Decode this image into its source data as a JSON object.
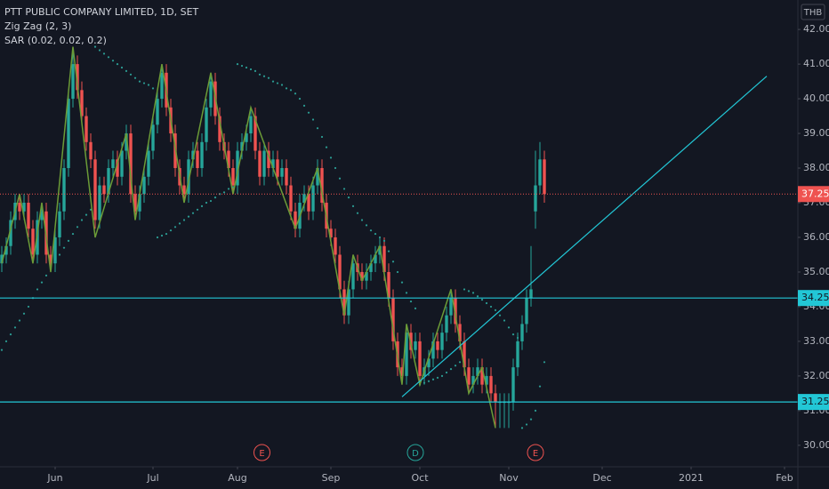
{
  "chart_data": {
    "type": "candlestick",
    "title": "PTT PUBLIC COMPANY LIMITED, 1D, SET",
    "currency": "THB",
    "up_color": "#26a69a",
    "down_color": "#ef5350",
    "open": [
      35.25,
      35.5,
      35.75,
      36.5,
      37,
      36.75,
      37,
      36.25,
      35.5,
      36.5,
      36.75,
      35.5,
      35.25,
      36,
      36.75,
      38,
      40,
      41,
      40.25,
      39.5,
      38.75,
      38.25,
      36.5,
      37.5,
      37.25,
      38,
      38.25,
      37.75,
      38.5,
      39,
      37.25,
      36.75,
      37.25,
      37.75,
      38.5,
      39.25,
      40,
      40.75,
      39.75,
      39,
      38,
      37.5,
      37.25,
      38.25,
      38.5,
      38,
      38.75,
      39.75,
      40.5,
      39.5,
      38.75,
      38.5,
      38,
      37.5,
      38.5,
      38.75,
      39,
      39.5,
      38.5,
      37.75,
      38.5,
      38,
      38.25,
      37.75,
      38,
      37.5,
      36.75,
      36.25,
      37,
      37.25,
      36.75,
      37.5,
      38,
      37,
      36.25,
      36,
      35.5,
      34.5,
      33.75,
      34.5,
      35.25,
      35,
      34.75,
      35,
      35.25,
      35.5,
      35.75,
      35,
      34.25,
      33,
      32.25,
      32,
      33.25,
      32.75,
      33,
      32,
      32.25,
      32.5,
      33,
      32.75,
      33.25,
      33.75,
      34.25,
      33.5,
      33,
      32.25,
      31.75,
      32,
      32.25,
      31.75,
      32,
      31.5,
      31.25,
      31.25,
      31.25,
      31.25,
      32.25,
      33,
      33.5,
      34.25,
      36.75,
      37.5,
      38.25
    ],
    "high": [
      35.75,
      36,
      36.75,
      37.25,
      37.25,
      37.25,
      37.25,
      36.5,
      36.75,
      37,
      37,
      35.75,
      36.25,
      37,
      38.25,
      40.25,
      41.5,
      41.25,
      40.5,
      39.75,
      39,
      38.5,
      37.75,
      37.75,
      38.25,
      38.5,
      38.5,
      38.75,
      39.25,
      39.25,
      37.5,
      37.5,
      38,
      38.75,
      39.5,
      40.25,
      41,
      41,
      40,
      39.25,
      38.25,
      37.75,
      38.5,
      38.75,
      38.75,
      39,
      40,
      40.75,
      40.75,
      39.75,
      39,
      38.75,
      38.25,
      38.75,
      39,
      39.25,
      39.75,
      39.75,
      38.75,
      38.75,
      38.75,
      38.5,
      38.5,
      38.25,
      38.25,
      37.75,
      37,
      37.25,
      37.5,
      37.5,
      37.75,
      38.25,
      38.25,
      37.25,
      36.5,
      36.25,
      35.75,
      34.75,
      34.75,
      35.5,
      35.5,
      35.25,
      35.25,
      35.5,
      35.75,
      36,
      36,
      35.25,
      34.5,
      33.25,
      32.5,
      33.5,
      33.5,
      33.25,
      33.25,
      32.5,
      32.75,
      33.25,
      33.25,
      33.5,
      34,
      34.5,
      34.5,
      33.75,
      33.25,
      32.5,
      32.25,
      32.5,
      32.5,
      32.25,
      32.25,
      31.75,
      31.5,
      31.5,
      31.5,
      32.5,
      33.25,
      33.75,
      34.5,
      35.75,
      38.5,
      38.75,
      38.5
    ],
    "low": [
      35,
      35.25,
      35.5,
      36.25,
      36.5,
      36.5,
      36,
      35.25,
      35.25,
      36.25,
      35.25,
      35,
      35,
      35.75,
      36.5,
      37.75,
      39.75,
      40,
      39.25,
      38.5,
      38,
      36.25,
      36.25,
      37,
      37,
      37.75,
      37.5,
      37.5,
      38.25,
      37,
      36.5,
      36.5,
      37,
      37.5,
      38.25,
      39,
      39.75,
      39.5,
      38.75,
      37.75,
      37.25,
      37,
      37,
      38,
      37.75,
      37.75,
      38.5,
      39.5,
      39.25,
      38.5,
      38.25,
      37.75,
      37.25,
      37.25,
      38.25,
      38.5,
      38.75,
      38.25,
      37.5,
      37.5,
      37.75,
      37.75,
      37.5,
      37.5,
      37.25,
      36.5,
      36,
      36,
      36.75,
      36.5,
      36.5,
      37.25,
      36.75,
      36,
      35.75,
      35.25,
      34.25,
      33.5,
      33.5,
      34.25,
      34.75,
      34.5,
      34.5,
      34.75,
      35,
      35.25,
      34.75,
      34,
      32.75,
      32,
      31.75,
      31.75,
      32.5,
      32.5,
      31.75,
      31.75,
      32,
      32.25,
      32.5,
      32.5,
      33,
      33.5,
      33.25,
      32.75,
      32,
      31.5,
      31.5,
      31.75,
      31.5,
      31.5,
      31.25,
      30.5,
      30.5,
      30.5,
      30.5,
      31,
      32,
      32.75,
      33.25,
      34,
      36.25,
      37.25,
      37
    ],
    "close": [
      35.5,
      35.75,
      36.5,
      37,
      36.75,
      37,
      36.25,
      35.5,
      36.5,
      36.75,
      35.5,
      35.25,
      36,
      36.75,
      38,
      40,
      41,
      40.25,
      39.5,
      38.75,
      38.25,
      36.5,
      37.5,
      37.25,
      38,
      38.25,
      37.75,
      38.5,
      39,
      37.25,
      36.75,
      37.25,
      37.75,
      38.5,
      39.25,
      40,
      40.75,
      39.75,
      39,
      38,
      37.5,
      37.25,
      38.25,
      38.5,
      38,
      38.75,
      39.75,
      40.5,
      39.5,
      38.75,
      38.5,
      38,
      37.5,
      38.5,
      38.75,
      39,
      39.5,
      38.5,
      37.75,
      38.5,
      38,
      38.25,
      37.75,
      38,
      37.5,
      36.75,
      36.25,
      37,
      37.25,
      36.75,
      37.5,
      38,
      37,
      36.25,
      36,
      35.5,
      34.5,
      33.75,
      34.5,
      35.25,
      35,
      34.75,
      35,
      35.25,
      35.5,
      35.75,
      35,
      34.25,
      33,
      32.25,
      32,
      33.25,
      32.75,
      33,
      32,
      32.25,
      32.5,
      33,
      32.75,
      33.25,
      33.75,
      34.25,
      33.5,
      33,
      32.25,
      31.75,
      32,
      32.25,
      31.75,
      32,
      31.5,
      31.25,
      31.25,
      31.25,
      31.25,
      32.25,
      33,
      33.5,
      34.25,
      34.5,
      37.5,
      38.25,
      37.25
    ],
    "xlim": [
      -0.4,
      179
    ],
    "xticks": [
      {
        "value": 12,
        "label": "Jun"
      },
      {
        "value": 34,
        "label": "Jul"
      },
      {
        "value": 53,
        "label": "Aug"
      },
      {
        "value": 74,
        "label": "Sep"
      },
      {
        "value": 94,
        "label": "Oct"
      },
      {
        "value": 114,
        "label": "Nov"
      },
      {
        "value": 135,
        "label": "Dec"
      },
      {
        "value": 155,
        "label": "2021"
      },
      {
        "value": 176,
        "label": "Feb"
      }
    ],
    "ylim": [
      29.38,
      42.85
    ],
    "yticks": [
      {
        "value": 30,
        "label": "30.00"
      },
      {
        "value": 31,
        "label": "31.00"
      },
      {
        "value": 32,
        "label": "32.00"
      },
      {
        "value": 33,
        "label": "33.00"
      },
      {
        "value": 34,
        "label": "34.00"
      },
      {
        "value": 35,
        "label": "35.00"
      },
      {
        "value": 36,
        "label": "36.00"
      },
      {
        "value": 37,
        "label": "37.00"
      },
      {
        "value": 38,
        "label": "38.00"
      },
      {
        "value": 39,
        "label": "39.00"
      },
      {
        "value": 40,
        "label": "40.00"
      },
      {
        "value": 41,
        "label": "41.00"
      },
      {
        "value": 42,
        "label": "42.00"
      }
    ],
    "grid": false,
    "zigzag": {
      "name": "Zig Zag (2, 3)",
      "color": "#6b9b37",
      "x": [
        0,
        4,
        7,
        9,
        11,
        16,
        21,
        28,
        30,
        36,
        41,
        47,
        52,
        56,
        66,
        71,
        77,
        79,
        81,
        85,
        90,
        91,
        94,
        101,
        105,
        108,
        111
      ],
      "values": [
        35.25,
        37.25,
        35.25,
        37,
        35,
        41.5,
        36,
        39,
        36.5,
        41,
        37,
        40.75,
        37.25,
        39.75,
        36.25,
        38,
        33.75,
        35.5,
        34.75,
        35.75,
        31.75,
        33.5,
        31.75,
        34.5,
        31.5,
        32.25,
        30.5
      ]
    },
    "sar": {
      "name": "SAR (0.02, 0.02, 0.2)",
      "color": "#2b9c93",
      "values": [
        32.75,
        33,
        33.2,
        33.4,
        33.6,
        33.8,
        34,
        34.25,
        34.5,
        34.7,
        34.9,
        35.1,
        35.3,
        35.5,
        35.7,
        35.9,
        36.1,
        36.3,
        36.5,
        36.65,
        36.8,
        41.5,
        41.4,
        41.3,
        41.2,
        41.1,
        41,
        40.9,
        40.8,
        40.7,
        40.6,
        40.5,
        40.45,
        40.4,
        40.3,
        36,
        36.05,
        36.1,
        36.2,
        36.3,
        36.4,
        36.5,
        36.6,
        36.7,
        36.8,
        36.9,
        37,
        37.05,
        37.15,
        37.25,
        37.3,
        37.4,
        37.45,
        41,
        40.95,
        40.9,
        40.85,
        40.8,
        40.7,
        40.65,
        40.6,
        40.5,
        40.45,
        40.4,
        40.3,
        40.25,
        40.15,
        40,
        39.8,
        39.6,
        39.4,
        39.15,
        38.9,
        38.6,
        38.3,
        38,
        37.7,
        37.4,
        37.15,
        36.9,
        36.7,
        36.5,
        36.35,
        36.2,
        36.1,
        36,
        35.9,
        35.6,
        35.3,
        35,
        34.7,
        34.4,
        34.15,
        33.95,
        31.75,
        31.8,
        31.85,
        31.9,
        31.95,
        32,
        32.1,
        32.2,
        32.3,
        32.4,
        34.5,
        34.45,
        34.4,
        34.3,
        34.2,
        34.1,
        34,
        33.9,
        33.75,
        33.6,
        33.4,
        33.2,
        33.1,
        30.5,
        30.6,
        30.75,
        31,
        31.7,
        32.4
      ]
    },
    "hlines": [
      {
        "value": 34.25,
        "label": "34.25",
        "color": "#22c7d6"
      },
      {
        "value": 31.25,
        "label": "31.25",
        "color": "#22c7d6"
      }
    ],
    "last_price": {
      "value": 37.25,
      "label": "37.25",
      "color": "#ef5350"
    },
    "trendline": {
      "color": "#22c7d6",
      "x": [
        90,
        172
      ],
      "values": [
        31.4,
        40.65
      ]
    },
    "events": [
      {
        "x": 58.5,
        "label": "E",
        "color": "#ef5350"
      },
      {
        "x": 93,
        "label": "D",
        "color": "#26a69a"
      },
      {
        "x": 120,
        "label": "E",
        "color": "#ef5350"
      }
    ]
  }
}
